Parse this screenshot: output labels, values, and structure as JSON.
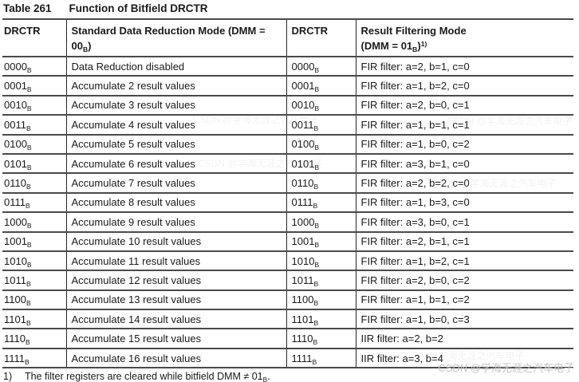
{
  "title": {
    "label": "Table 261",
    "caption": "Function of Bitfield DRCTR"
  },
  "table": {
    "columns": [
      "DRCTR",
      "Standard Data Reduction Mode (DMM =\n00~B~)",
      "DRCTR",
      "Result Filtering Mode\n(DMM = 01~B~)^1)^"
    ],
    "rows": [
      {
        "c0": "0000~B~",
        "c1": "Data Reduction disabled",
        "c2": "0000~B~",
        "c3": "FIR filter: a=2, b=1, c=0"
      },
      {
        "c0": "0001~B~",
        "c1": "Accumulate 2 result values",
        "c2": "0001~B~",
        "c3": "FIR filter: a=1, b=2, c=0"
      },
      {
        "c0": "0010~B~",
        "c1": "Accumulate 3 result values",
        "c2": "0010~B~",
        "c3": "FIR filter: a=2, b=0, c=1"
      },
      {
        "c0": "0011~B~",
        "c1": "Accumulate 4 result values",
        "c2": "0011~B~",
        "c3": "FIR filter: a=1, b=1, c=1"
      },
      {
        "c0": "0100~B~",
        "c1": "Accumulate 5 result values",
        "c2": "0100~B~",
        "c3": "FIR filter: a=1, b=0, c=2"
      },
      {
        "c0": "0101~B~",
        "c1": "Accumulate 6 result values",
        "c2": "0101~B~",
        "c3": "FIR filter: a=3, b=1, c=0"
      },
      {
        "c0": "0110~B~",
        "c1": "Accumulate 7 result values",
        "c2": "0110~B~",
        "c3": "FIR filter: a=2, b=2, c=0"
      },
      {
        "c0": "0111~B~",
        "c1": "Accumulate 8 result values",
        "c2": "0111~B~",
        "c3": "FIR filter: a=1, b=3, c=0"
      },
      {
        "c0": "1000~B~",
        "c1": "Accumulate 9 result values",
        "c2": "1000~B~",
        "c3": "FIR filter: a=3, b=0, c=1"
      },
      {
        "c0": "1001~B~",
        "c1": "Accumulate 10 result values",
        "c2": "1001~B~",
        "c3": "FIR filter: a=2, b=1, c=1"
      },
      {
        "c0": "1010~B~",
        "c1": "Accumulate 11 result values",
        "c2": "1010~B~",
        "c3": "FIR filter: a=1, b=2, c=1"
      },
      {
        "c0": "1011~B~",
        "c1": "Accumulate 12 result values",
        "c2": "1011~B~",
        "c3": "FIR filter: a=2, b=0, c=2"
      },
      {
        "c0": "1100~B~",
        "c1": "Accumulate 13 result values",
        "c2": "1100~B~",
        "c3": "FIR filter: a=1, b=1, c=2"
      },
      {
        "c0": "1101~B~",
        "c1": "Accumulate 14 result values",
        "c2": "1101~B~",
        "c3": "FIR filter: a=1, b=0, c=3"
      },
      {
        "c0": "1110~B~",
        "c1": "Accumulate 15 result values",
        "c2": "1110~B~",
        "c3": "IIR filter: a=2, b=2"
      },
      {
        "c0": "1111~B~",
        "c1": "Accumulate 16 result values",
        "c2": "1111~B~",
        "c3": "IIR filter: a=3, b=4"
      }
    ]
  },
  "footnote": {
    "marker": "1)",
    "text": "The filter registers are cleared while bitfield DMM ≠ 01~B~."
  },
  "watermark": {
    "text": "CSDN @学海无涯之汽车电子"
  },
  "colors": {
    "text": "#1a1a1a",
    "horizontal_rule": "#4a4a4a",
    "vertical_divider": "#262626",
    "background": "#ffffff",
    "watermark": "#c6c6c6"
  }
}
